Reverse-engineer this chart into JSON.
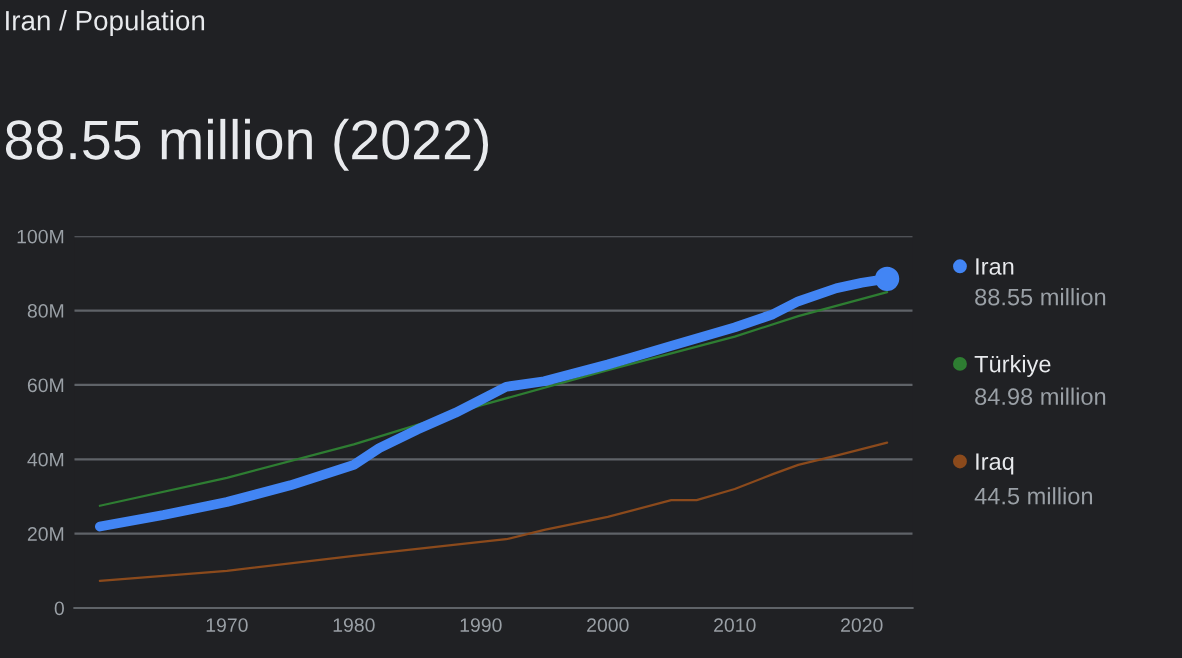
{
  "chart_data": {
    "type": "line",
    "title": "88.55 million (2022)",
    "subtitle": "Iran / Population",
    "series": [
      {
        "name": "Iran",
        "color": "#4285f4",
        "x": [
          1960,
          1965,
          1970,
          1975,
          1980,
          1982,
          1985,
          1988,
          1990,
          1992,
          1995,
          2000,
          2002,
          2005,
          2010,
          2013,
          2015,
          2018,
          2020,
          2022
        ],
        "values": [
          21.9,
          25,
          28.5,
          33,
          38.5,
          43,
          48,
          52.5,
          56,
          59.5,
          61,
          65.5,
          67.5,
          70.5,
          75.5,
          79,
          82.5,
          86,
          87.5,
          88.55
        ]
      },
      {
        "name": "Türkiye",
        "color": "#2e7d32",
        "x": [
          1960,
          1970,
          1980,
          1990,
          2000,
          2010,
          2015,
          2022
        ],
        "values": [
          27.5,
          35,
          44,
          54.5,
          64,
          73,
          78.5,
          84.98
        ]
      },
      {
        "name": "Iraq",
        "color": "#8b4a1c",
        "x": [
          1960,
          1970,
          1980,
          1990,
          1992,
          1995,
          2000,
          2005,
          2007,
          2010,
          2013,
          2015,
          2018,
          2022
        ],
        "values": [
          7.3,
          10,
          14,
          17.8,
          18.5,
          21,
          24.5,
          29,
          29,
          32,
          36,
          38.5,
          41,
          44.5
        ]
      },
      {
        "type": "scatter",
        "color": "#4285f4",
        "x": [
          2022
        ],
        "values": [
          88.55
        ]
      }
    ],
    "annotations": [
      "88.55 million",
      "84.98 million",
      "44.5 million"
    ],
    "xlim": [
      1958,
      2024
    ],
    "xticks": [
      1970,
      1980,
      1990,
      2000,
      2010,
      2020
    ],
    "ylim": [
      0,
      100
    ],
    "yticks": [
      {
        "value": 0,
        "label": "0"
      },
      {
        "value": 20,
        "label": "20M"
      },
      {
        "value": 40,
        "label": "40M"
      },
      {
        "value": 60,
        "label": "60M"
      },
      {
        "value": 80,
        "label": "80M"
      },
      {
        "value": 100,
        "label": "100M"
      }
    ],
    "grid": "y",
    "legend": "right"
  }
}
